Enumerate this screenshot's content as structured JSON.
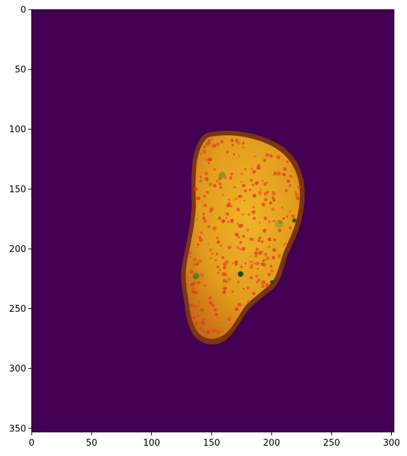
{
  "image": {
    "x_ticks": [
      "0",
      "50",
      "100",
      "150",
      "200",
      "250",
      "300"
    ],
    "y_ticks": [
      "0",
      "50",
      "100",
      "150",
      "200",
      "250",
      "300",
      "350"
    ],
    "x_range": [
      0,
      302
    ],
    "y_range": [
      0,
      353
    ],
    "background_color": "#440154",
    "object_colors": {
      "base": "#E5A21B",
      "rim": "#8A3E14",
      "speckle": "#E0401A",
      "dark_spot": "#1E5A1E"
    }
  }
}
